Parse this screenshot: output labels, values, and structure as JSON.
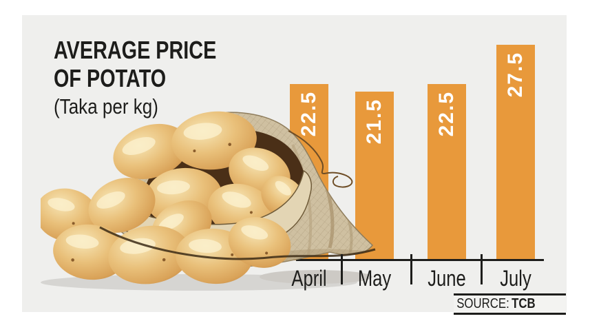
{
  "title": {
    "line1": "AVERAGE PRICE",
    "line2": "OF POTATO",
    "subtitle": "(Taka per kg)"
  },
  "chart_data": {
    "type": "bar",
    "title": "AVERAGE PRICE OF POTATO",
    "subtitle": "(Taka per kg)",
    "ylabel": "Taka per kg",
    "xlabel": "",
    "categories": [
      "April",
      "May",
      "June",
      "July"
    ],
    "values": [
      22.5,
      21.5,
      22.5,
      27.5
    ],
    "value_labels": [
      "22.5",
      "21.5",
      "22.5",
      "27.5"
    ],
    "ylim": [
      0,
      30
    ],
    "grid": false,
    "legend_position": "none",
    "bar_color": "#E8993B",
    "value_label_color": "#FFFFFF",
    "value_label_rotation": -90,
    "axis_line_color": "#1D1D1B",
    "panel_background": "#EFEFED"
  },
  "source": {
    "label": "SOURCE:",
    "value": "TCB"
  },
  "illustration": {
    "name": "potato-sack-illustration"
  }
}
